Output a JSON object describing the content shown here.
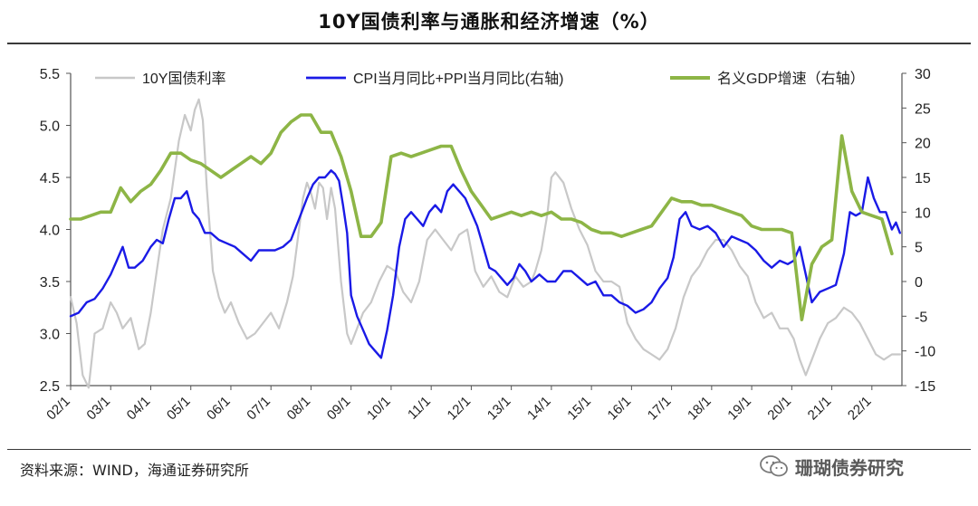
{
  "header": {
    "title": "10Y国债利率与通胀和经济增速（%）"
  },
  "footer": {
    "source": "资料来源：WIND，海通证券研究所",
    "watermark": "珊瑚债券研究"
  },
  "colors": {
    "yield": "#c8c8c8",
    "inflation": "#1a1ae6",
    "gdp": "#8db546"
  },
  "chart_data": {
    "type": "line",
    "title": "10Y国债利率与通胀和经济增速（%）",
    "x_tick_labels": [
      "02/1",
      "03/1",
      "04/1",
      "05/1",
      "06/1",
      "07/1",
      "08/1",
      "09/1",
      "10/1",
      "11/1",
      "12/1",
      "13/1",
      "14/1",
      "15/1",
      "16/1",
      "17/1",
      "18/1",
      "19/1",
      "20/1",
      "21/1",
      "22/1"
    ],
    "x_range": [
      2002.0,
      2022.75
    ],
    "left_axis": {
      "ylim": [
        2.5,
        5.5
      ],
      "ticks": [
        "2.5",
        "3.0",
        "3.5",
        "4.0",
        "4.5",
        "5.0",
        "5.5"
      ]
    },
    "right_axis": {
      "ylim": [
        -15,
        30
      ],
      "ticks": [
        "-15",
        "-10",
        "-5",
        "0",
        "5",
        "10",
        "15",
        "20",
        "25",
        "30"
      ]
    },
    "series": [
      {
        "name": "10Y国债利率",
        "axis": "left",
        "x": [
          2002.0,
          2002.15,
          2002.3,
          2002.45,
          2002.6,
          2002.8,
          2003.0,
          2003.15,
          2003.3,
          2003.5,
          2003.7,
          2003.85,
          2004.0,
          2004.15,
          2004.3,
          2004.5,
          2004.7,
          2004.85,
          2005.0,
          2005.1,
          2005.2,
          2005.3,
          2005.4,
          2005.55,
          2005.7,
          2005.85,
          2006.0,
          2006.2,
          2006.4,
          2006.6,
          2006.8,
          2007.0,
          2007.2,
          2007.4,
          2007.55,
          2007.7,
          2007.8,
          2007.9,
          2008.0,
          2008.1,
          2008.2,
          2008.3,
          2008.4,
          2008.5,
          2008.6,
          2008.75,
          2008.9,
          2009.0,
          2009.15,
          2009.3,
          2009.5,
          2009.7,
          2009.9,
          2010.1,
          2010.3,
          2010.5,
          2010.7,
          2010.9,
          2011.1,
          2011.3,
          2011.5,
          2011.7,
          2011.9,
          2012.1,
          2012.3,
          2012.5,
          2012.7,
          2012.9,
          2013.1,
          2013.3,
          2013.5,
          2013.6,
          2013.75,
          2013.9,
          2014.0,
          2014.1,
          2014.3,
          2014.5,
          2014.7,
          2014.9,
          2015.1,
          2015.3,
          2015.5,
          2015.7,
          2015.9,
          2016.1,
          2016.3,
          2016.5,
          2016.7,
          2016.9,
          2017.1,
          2017.3,
          2017.5,
          2017.7,
          2017.9,
          2018.1,
          2018.3,
          2018.5,
          2018.7,
          2018.9,
          2019.1,
          2019.3,
          2019.5,
          2019.7,
          2019.9,
          2020.05,
          2020.2,
          2020.35,
          2020.5,
          2020.7,
          2020.9,
          2021.1,
          2021.3,
          2021.5,
          2021.7,
          2021.9,
          2022.1,
          2022.3,
          2022.5,
          2022.7
        ],
        "values": [
          3.35,
          3.1,
          2.6,
          2.48,
          3.0,
          3.05,
          3.3,
          3.2,
          3.05,
          3.15,
          2.85,
          2.9,
          3.2,
          3.6,
          4.0,
          4.3,
          4.85,
          5.1,
          4.95,
          5.15,
          5.25,
          5.05,
          4.4,
          3.6,
          3.35,
          3.2,
          3.3,
          3.1,
          2.95,
          3.0,
          3.1,
          3.2,
          3.05,
          3.3,
          3.55,
          4.0,
          4.3,
          4.45,
          4.35,
          4.2,
          4.45,
          4.4,
          4.1,
          4.4,
          4.2,
          3.5,
          3.0,
          2.9,
          3.05,
          3.2,
          3.3,
          3.5,
          3.65,
          3.6,
          3.4,
          3.3,
          3.5,
          3.9,
          4.0,
          3.9,
          3.8,
          3.95,
          4.0,
          3.6,
          3.45,
          3.55,
          3.4,
          3.35,
          3.55,
          3.45,
          3.5,
          3.6,
          3.8,
          4.15,
          4.5,
          4.55,
          4.45,
          4.2,
          4.0,
          3.85,
          3.6,
          3.5,
          3.5,
          3.45,
          3.1,
          2.95,
          2.85,
          2.8,
          2.75,
          2.85,
          3.05,
          3.35,
          3.55,
          3.65,
          3.8,
          3.9,
          3.9,
          3.8,
          3.65,
          3.55,
          3.3,
          3.15,
          3.2,
          3.05,
          3.05,
          2.95,
          2.75,
          2.6,
          2.75,
          2.95,
          3.1,
          3.15,
          3.25,
          3.2,
          3.1,
          2.95,
          2.8,
          2.75,
          2.8,
          2.8
        ]
      },
      {
        "name": "CPI当月同比+PPI当月同比(右轴)",
        "axis": "right",
        "x": [
          2002.0,
          2002.2,
          2002.4,
          2002.6,
          2002.8,
          2003.0,
          2003.15,
          2003.3,
          2003.45,
          2003.6,
          2003.8,
          2004.0,
          2004.15,
          2004.3,
          2004.45,
          2004.6,
          2004.75,
          2004.9,
          2005.05,
          2005.2,
          2005.35,
          2005.5,
          2005.7,
          2005.9,
          2006.1,
          2006.3,
          2006.5,
          2006.7,
          2006.9,
          2007.1,
          2007.3,
          2007.5,
          2007.7,
          2007.9,
          2008.05,
          2008.2,
          2008.35,
          2008.5,
          2008.6,
          2008.7,
          2008.8,
          2008.9,
          2009.0,
          2009.15,
          2009.3,
          2009.45,
          2009.6,
          2009.75,
          2009.9,
          2010.05,
          2010.2,
          2010.35,
          2010.5,
          2010.65,
          2010.8,
          2010.95,
          2011.1,
          2011.25,
          2011.4,
          2011.55,
          2011.7,
          2011.85,
          2012.0,
          2012.15,
          2012.3,
          2012.45,
          2012.6,
          2012.75,
          2012.9,
          2013.05,
          2013.2,
          2013.35,
          2013.5,
          2013.7,
          2013.9,
          2014.1,
          2014.3,
          2014.5,
          2014.7,
          2014.9,
          2015.1,
          2015.3,
          2015.5,
          2015.7,
          2015.9,
          2016.1,
          2016.3,
          2016.5,
          2016.7,
          2016.9,
          2017.05,
          2017.2,
          2017.35,
          2017.5,
          2017.7,
          2017.9,
          2018.1,
          2018.3,
          2018.5,
          2018.7,
          2018.9,
          2019.1,
          2019.3,
          2019.5,
          2019.7,
          2019.9,
          2020.05,
          2020.2,
          2020.35,
          2020.5,
          2020.7,
          2020.9,
          2021.1,
          2021.3,
          2021.45,
          2021.6,
          2021.75,
          2021.9,
          2022.05,
          2022.2,
          2022.35,
          2022.5,
          2022.6,
          2022.7
        ],
        "values": [
          -5,
          -4.5,
          -3,
          -2.5,
          -1,
          1,
          3,
          5,
          2,
          2,
          3,
          5,
          6,
          5.5,
          9,
          12,
          12,
          13,
          10,
          9,
          7,
          7,
          6,
          5.5,
          5,
          4,
          3,
          4.5,
          4.5,
          4.5,
          5,
          6,
          9,
          12,
          14,
          15,
          15,
          16,
          15.5,
          14.5,
          11,
          7,
          -2,
          -5,
          -7,
          -9,
          -10,
          -11,
          -7,
          -2,
          5,
          9,
          10,
          9,
          8,
          10,
          11,
          10,
          13,
          14,
          13,
          12,
          10,
          8,
          5,
          2,
          1.5,
          0.5,
          -0.5,
          0.5,
          2.5,
          1.5,
          0,
          1,
          0,
          0,
          1.5,
          1.5,
          0.5,
          -0.5,
          0,
          -2,
          -2,
          -3,
          -3.5,
          -4.5,
          -4,
          -3,
          -1,
          0.5,
          3.5,
          9,
          10,
          8,
          7.5,
          8,
          7,
          5,
          6.5,
          6,
          5.5,
          4.5,
          3,
          2,
          3,
          2.5,
          3,
          5,
          1,
          -3,
          -1.5,
          -1,
          -0.5,
          4,
          10,
          9.5,
          10,
          15,
          12,
          10,
          10,
          7.5,
          8.5,
          7
        ]
      },
      {
        "name": "名义GDP增速（右轴）",
        "axis": "right",
        "x": [
          2002.0,
          2002.25,
          2002.5,
          2002.75,
          2003.0,
          2003.25,
          2003.5,
          2003.75,
          2004.0,
          2004.25,
          2004.5,
          2004.75,
          2005.0,
          2005.25,
          2005.5,
          2005.75,
          2006.0,
          2006.25,
          2006.5,
          2006.75,
          2007.0,
          2007.25,
          2007.5,
          2007.75,
          2008.0,
          2008.25,
          2008.5,
          2008.75,
          2009.0,
          2009.25,
          2009.5,
          2009.75,
          2010.0,
          2010.25,
          2010.5,
          2010.75,
          2011.0,
          2011.25,
          2011.5,
          2011.75,
          2012.0,
          2012.25,
          2012.5,
          2012.75,
          2013.0,
          2013.25,
          2013.5,
          2013.75,
          2014.0,
          2014.25,
          2014.5,
          2014.75,
          2015.0,
          2015.25,
          2015.5,
          2015.75,
          2016.0,
          2016.25,
          2016.5,
          2016.75,
          2017.0,
          2017.25,
          2017.5,
          2017.75,
          2018.0,
          2018.25,
          2018.5,
          2018.75,
          2019.0,
          2019.25,
          2019.5,
          2019.75,
          2020.0,
          2020.25,
          2020.5,
          2020.75,
          2021.0,
          2021.25,
          2021.5,
          2021.75,
          2022.0,
          2022.25,
          2022.5
        ],
        "values": [
          9,
          9,
          9.5,
          10,
          10,
          13.5,
          11.5,
          13,
          14,
          16,
          18.5,
          18.5,
          17.5,
          17,
          16,
          15,
          16,
          17,
          18,
          17,
          18.5,
          21.5,
          23,
          24,
          24,
          21.5,
          21.5,
          18,
          13,
          6.5,
          6.5,
          8.5,
          18,
          18.5,
          18,
          18.5,
          19,
          19.5,
          19.5,
          16,
          13,
          11,
          9,
          9.5,
          10,
          9.5,
          10,
          9.5,
          10,
          9,
          9,
          8.5,
          7.5,
          7,
          7,
          6.5,
          7,
          7.5,
          8,
          10,
          12,
          11.5,
          11.5,
          11,
          11,
          10.5,
          10,
          9.5,
          8,
          7.5,
          7.5,
          7.5,
          7,
          -5.5,
          2.5,
          5,
          6,
          21,
          13,
          10,
          9.5,
          9,
          4
        ]
      }
    ]
  }
}
